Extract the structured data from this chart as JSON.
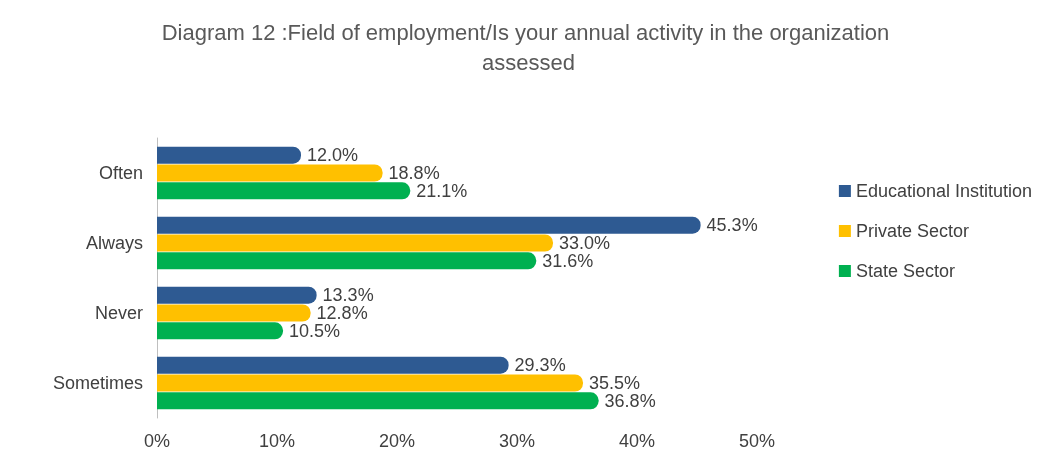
{
  "chart_data": {
    "type": "bar",
    "orientation": "horizontal",
    "title": "Diagram 12 :Field of employment/Is your annual activity in the organization assessed",
    "categories": [
      "Often",
      "Always",
      "Never",
      "Sometimes"
    ],
    "series": [
      {
        "name": "Educational Institution",
        "color": "#2e5a92",
        "values": [
          12.0,
          45.3,
          13.3,
          29.3
        ],
        "value_labels": [
          "12.0%",
          "45.3%",
          "13.3%",
          "29.3%"
        ]
      },
      {
        "name": "Private Sector",
        "color": "#ffc000",
        "values": [
          18.8,
          33.0,
          12.8,
          35.5
        ],
        "value_labels": [
          "18.8%",
          "33.0%",
          "12.8%",
          "35.5%"
        ]
      },
      {
        "name": "State Sector",
        "color": "#00b050",
        "values": [
          21.1,
          31.6,
          10.5,
          36.8
        ],
        "value_labels": [
          "21.1%",
          "31.6%",
          "10.5%",
          "36.8%"
        ]
      }
    ],
    "xlim": [
      0,
      50
    ],
    "xticks": [
      {
        "value": 0,
        "label": "0%"
      },
      {
        "value": 10,
        "label": "10%"
      },
      {
        "value": 20,
        "label": "20%"
      },
      {
        "value": 30,
        "label": "30%"
      },
      {
        "value": 40,
        "label": "40%"
      },
      {
        "value": 50,
        "label": "50%"
      }
    ],
    "grid": false,
    "legend": "right"
  }
}
